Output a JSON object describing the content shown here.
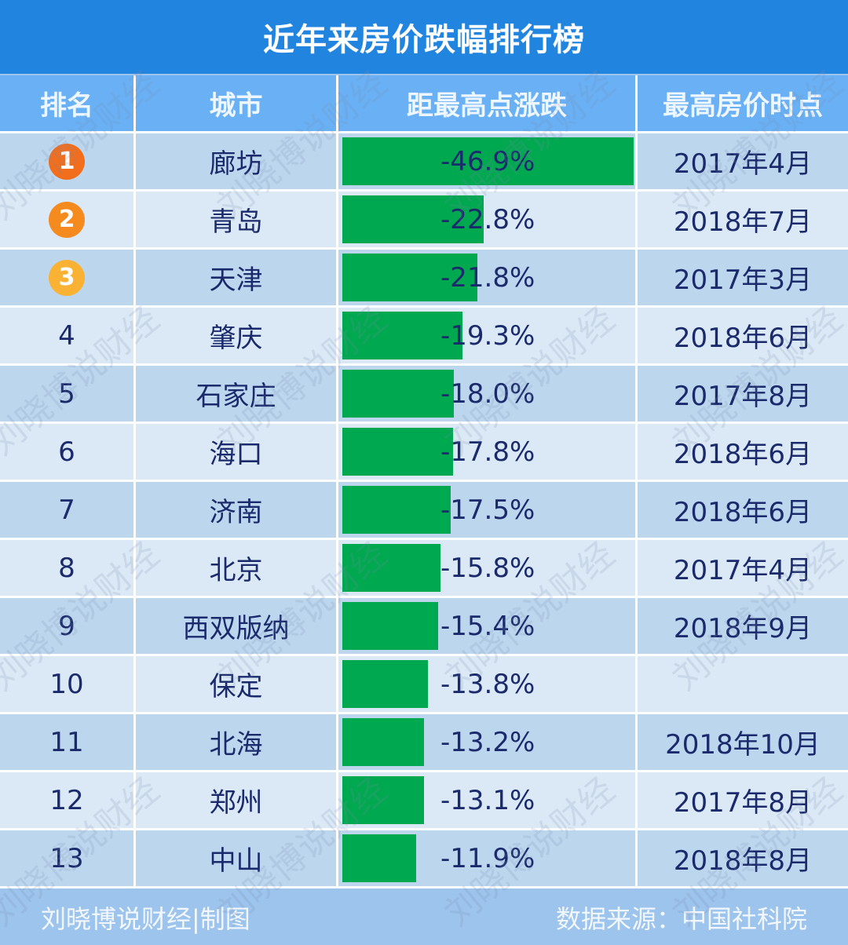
{
  "title": "近年来房价跌幅排行榜",
  "headers": [
    "排名",
    "城市",
    "距最高点涨跌",
    "最高房价时点"
  ],
  "rows": [
    {
      "rank": "1",
      "city": "廊坊",
      "change": "-46.9%",
      "value": 46.9,
      "peak": "2017年4月",
      "badge_color": "#f26e1d"
    },
    {
      "rank": "2",
      "city": "青岛",
      "change": "-22.8%",
      "value": 22.8,
      "peak": "2018年7月",
      "badge_color": "#f58a1f"
    },
    {
      "rank": "3",
      "city": "天津",
      "change": "-21.8%",
      "value": 21.8,
      "peak": "2017年3月",
      "badge_color": "#f9b233"
    },
    {
      "rank": "4",
      "city": "肇庆",
      "change": "-19.3%",
      "value": 19.3,
      "peak": "2018年6月"
    },
    {
      "rank": "5",
      "city": "石家庄",
      "change": "-18.0%",
      "value": 18.0,
      "peak": "2017年8月"
    },
    {
      "rank": "6",
      "city": "海口",
      "change": "-17.8%",
      "value": 17.8,
      "peak": "2018年6月"
    },
    {
      "rank": "7",
      "city": "济南",
      "change": "-17.5%",
      "value": 17.5,
      "peak": "2018年6月"
    },
    {
      "rank": "8",
      "city": "北京",
      "change": "-15.8%",
      "value": 15.8,
      "peak": "2017年4月"
    },
    {
      "rank": "9",
      "city": "西双版纳",
      "change": "-15.4%",
      "value": 15.4,
      "peak": "2018年9月"
    },
    {
      "rank": "10",
      "city": "保定",
      "change": "-13.8%",
      "value": 13.8,
      "peak": ""
    },
    {
      "rank": "11",
      "city": "北海",
      "change": "-13.2%",
      "value": 13.2,
      "peak": "2018年10月"
    },
    {
      "rank": "12",
      "city": "郑州",
      "change": "-13.1%",
      "value": 13.1,
      "peak": "2017年8月"
    },
    {
      "rank": "13",
      "city": "中山",
      "change": "-11.9%",
      "value": 11.9,
      "peak": "2018年8月"
    }
  ],
  "footer": {
    "left": "刘晓博说财经|制图",
    "right": "数据来源：中国社科院"
  },
  "watermark": "刘晓博说财经",
  "colors": {
    "bar": "#00a84f",
    "title_bg": "#2185e0",
    "header_bg": "#6ab0f5"
  },
  "chart_data": {
    "type": "bar",
    "title": "近年来房价跌幅排行榜",
    "categories": [
      "廊坊",
      "青岛",
      "天津",
      "肇庆",
      "石家庄",
      "海口",
      "济南",
      "北京",
      "西双版纳",
      "保定",
      "北海",
      "郑州",
      "中山"
    ],
    "values": [
      -46.9,
      -22.8,
      -21.8,
      -19.3,
      -18.0,
      -17.8,
      -17.5,
      -15.8,
      -15.4,
      -13.8,
      -13.2,
      -13.1,
      -11.9
    ],
    "peak_dates": [
      "2017年4月",
      "2018年7月",
      "2017年3月",
      "2018年6月",
      "2017年8月",
      "2018年6月",
      "2018年6月",
      "2017年4月",
      "2018年9月",
      "",
      "2018年10月",
      "2017年8月",
      "2018年8月"
    ],
    "xlabel": "城市",
    "ylabel": "距最高点涨跌",
    "orientation": "horizontal",
    "source": "中国社科院"
  }
}
